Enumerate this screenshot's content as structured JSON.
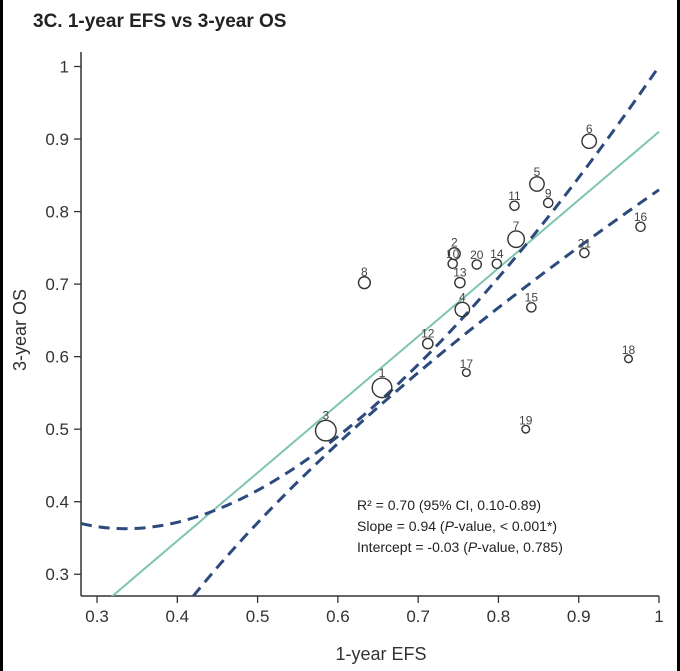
{
  "chart_data": {
    "type": "scatter",
    "title": "3C. 1-year EFS vs 3-year OS",
    "xlabel": "1-year EFS",
    "ylabel": "3-year OS",
    "xlim": [
      0.28,
      1.0
    ],
    "ylim": [
      0.27,
      1.02
    ],
    "x_ticks": [
      "0.3",
      "0.4",
      "0.5",
      "0.6",
      "0.7",
      "0.8",
      "0.9",
      "1"
    ],
    "y_ticks": [
      "0.3",
      "0.4",
      "0.5",
      "0.6",
      "0.7",
      "0.8",
      "0.9",
      "1"
    ],
    "grid": false,
    "colors": {
      "fit_line": "#7fc4b0",
      "ci_line": "#2c4a7c",
      "points": "#333333",
      "axis": "#333333"
    },
    "regression": {
      "slope": 0.94,
      "intercept": -0.03
    },
    "confidence_band": {
      "upper": {
        "x": [
          0.28,
          0.6,
          1.0
        ],
        "y": [
          0.37,
          0.49,
          1.0
        ]
      },
      "lower": {
        "x": [
          0.42,
          0.66,
          1.0
        ],
        "y": [
          0.27,
          0.54,
          0.83
        ]
      }
    },
    "points": [
      {
        "label": "1",
        "x": 0.655,
        "y": 0.557,
        "size": 3
      },
      {
        "label": "2",
        "x": 0.745,
        "y": 0.742,
        "size": 1.5
      },
      {
        "label": "3",
        "x": 0.585,
        "y": 0.498,
        "size": 3.2
      },
      {
        "label": "4",
        "x": 0.755,
        "y": 0.665,
        "size": 2
      },
      {
        "label": "5",
        "x": 0.848,
        "y": 0.838,
        "size": 2
      },
      {
        "label": "6",
        "x": 0.913,
        "y": 0.897,
        "size": 2
      },
      {
        "label": "7",
        "x": 0.822,
        "y": 0.762,
        "size": 2.4
      },
      {
        "label": "8",
        "x": 0.633,
        "y": 0.702,
        "size": 1.5
      },
      {
        "label": "9",
        "x": 0.862,
        "y": 0.812,
        "size": 1
      },
      {
        "label": "10",
        "x": 0.743,
        "y": 0.728,
        "size": 1
      },
      {
        "label": "11",
        "x": 0.82,
        "y": 0.808,
        "size": 1
      },
      {
        "label": "12",
        "x": 0.712,
        "y": 0.618,
        "size": 1.2
      },
      {
        "label": "13",
        "x": 0.752,
        "y": 0.702,
        "size": 1.2
      },
      {
        "label": "14",
        "x": 0.798,
        "y": 0.728,
        "size": 1
      },
      {
        "label": "15",
        "x": 0.841,
        "y": 0.668,
        "size": 1
      },
      {
        "label": "16",
        "x": 0.977,
        "y": 0.779,
        "size": 1
      },
      {
        "label": "17",
        "x": 0.76,
        "y": 0.578,
        "size": 0.7
      },
      {
        "label": "18",
        "x": 0.962,
        "y": 0.597,
        "size": 0.7
      },
      {
        "label": "19",
        "x": 0.834,
        "y": 0.5,
        "size": 0.7
      },
      {
        "label": "20",
        "x": 0.773,
        "y": 0.727,
        "size": 1
      },
      {
        "label": "21",
        "x": 0.907,
        "y": 0.743,
        "size": 1
      }
    ],
    "annotations": [
      {
        "id": "r2",
        "parts": [
          "R² = 0.70 (95% CI, 0.10-0.89)"
        ],
        "italic": [
          false
        ]
      },
      {
        "id": "slope",
        "parts": [
          "Slope = 0.94 (",
          "P",
          "-value, < 0.001*)"
        ],
        "italic": [
          false,
          true,
          false
        ]
      },
      {
        "id": "intercept",
        "parts": [
          "Intercept = -0.03 (",
          "P",
          "-value, 0.785)"
        ],
        "italic": [
          false,
          true,
          false
        ]
      }
    ]
  }
}
